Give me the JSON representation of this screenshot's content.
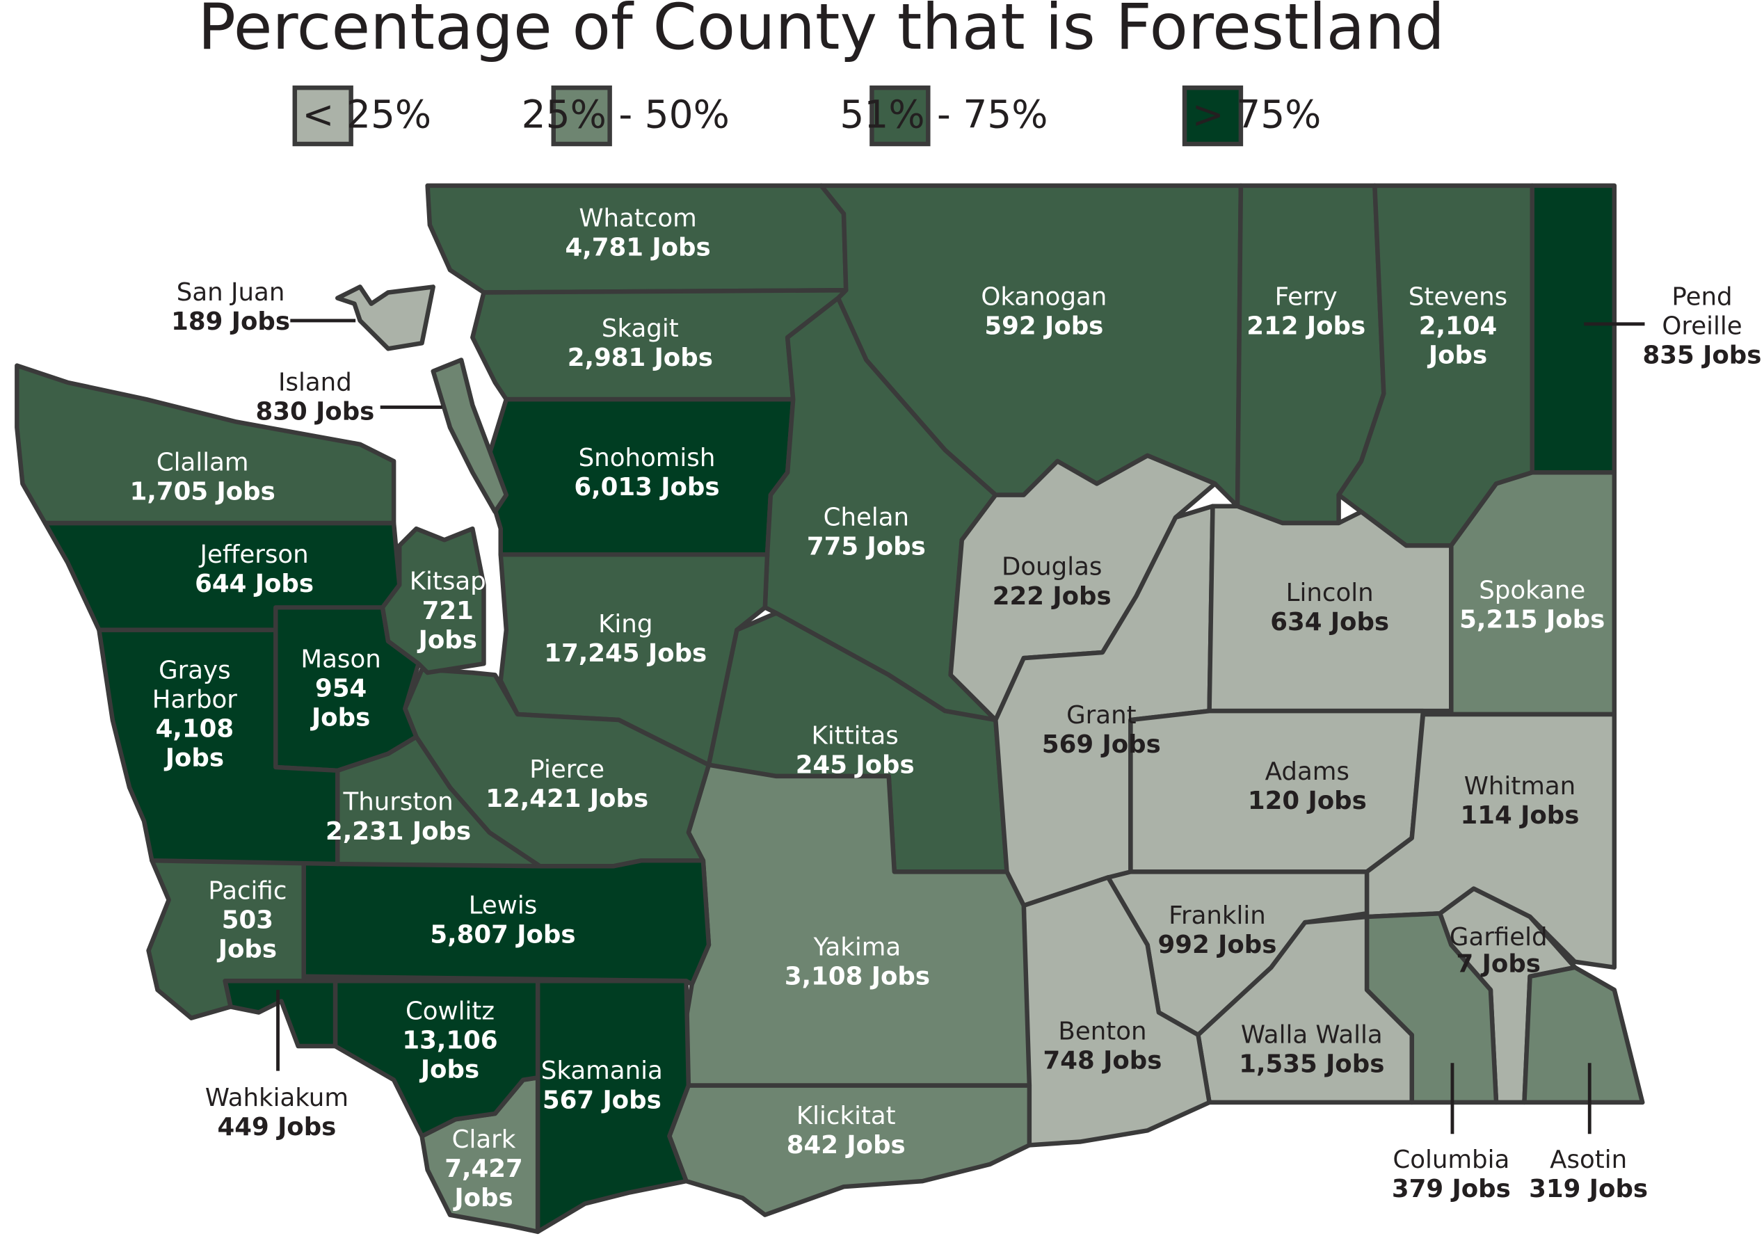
{
  "title": "Percentage of  County that is Forestland",
  "legend": [
    {
      "label": "< 25%",
      "color": "#abb2a8"
    },
    {
      "label": "25% - 50%",
      "color": "#6e8571"
    },
    {
      "label": "51% - 75%",
      "color": "#3d5f47"
    },
    {
      "label": "> 75%",
      "color": "#003d22"
    }
  ],
  "counties": [
    {
      "name": [
        "Whatcom"
      ],
      "jobs": [
        "4,781 Jobs"
      ],
      "class": 2
    },
    {
      "name": [
        "Okanogan"
      ],
      "jobs": [
        "592 Jobs"
      ],
      "class": 2
    },
    {
      "name": [
        "Ferry"
      ],
      "jobs": [
        "212 Jobs"
      ],
      "class": 2
    },
    {
      "name": [
        "Stevens"
      ],
      "jobs": [
        "2,104",
        "Jobs"
      ],
      "class": 2
    },
    {
      "name": [
        "Pend",
        "Oreille"
      ],
      "jobs": [
        "835 Jobs"
      ],
      "class": 3
    },
    {
      "name": [
        "Skagit"
      ],
      "jobs": [
        "2,981 Jobs"
      ],
      "class": 2
    },
    {
      "name": [
        "Snohomish"
      ],
      "jobs": [
        "6,013 Jobs"
      ],
      "class": 3
    },
    {
      "name": [
        "Chelan"
      ],
      "jobs": [
        "775 Jobs"
      ],
      "class": 2
    },
    {
      "name": [
        "Douglas"
      ],
      "jobs": [
        "222 Jobs"
      ],
      "class": 0
    },
    {
      "name": [
        "King"
      ],
      "jobs": [
        "17,245 Jobs"
      ],
      "class": 2
    },
    {
      "name": [
        "Kittitas"
      ],
      "jobs": [
        "245 Jobs"
      ],
      "class": 2
    },
    {
      "name": [
        "Grant"
      ],
      "jobs": [
        "569 Jobs"
      ],
      "class": 0
    },
    {
      "name": [
        "Lincoln"
      ],
      "jobs": [
        "634 Jobs"
      ],
      "class": 0
    },
    {
      "name": [
        "Spokane"
      ],
      "jobs": [
        "5,215 Jobs"
      ],
      "class": 1
    },
    {
      "name": [
        "Adams"
      ],
      "jobs": [
        "120 Jobs"
      ],
      "class": 0
    },
    {
      "name": [
        "Whitman"
      ],
      "jobs": [
        "114 Jobs"
      ],
      "class": 0
    },
    {
      "name": [
        "Franklin"
      ],
      "jobs": [
        "992 Jobs"
      ],
      "class": 0
    },
    {
      "name": [
        "Garfield"
      ],
      "jobs": [
        "7 Jobs"
      ],
      "class": 0
    },
    {
      "name": [
        "Asotin"
      ],
      "jobs": [
        "319 Jobs"
      ],
      "class": 1
    },
    {
      "name": [
        "Columbia"
      ],
      "jobs": [
        "379 Jobs"
      ],
      "class": 1
    },
    {
      "name": [
        "Walla Walla"
      ],
      "jobs": [
        "1,535 Jobs"
      ],
      "class": 0
    },
    {
      "name": [
        "Benton"
      ],
      "jobs": [
        "748 Jobs"
      ],
      "class": 0
    },
    {
      "name": [
        "Yakima"
      ],
      "jobs": [
        "3,108 Jobs"
      ],
      "class": 1
    },
    {
      "name": [
        "Klickitat"
      ],
      "jobs": [
        "842 Jobs"
      ],
      "class": 1
    },
    {
      "name": [
        "Skamania"
      ],
      "jobs": [
        "567 Jobs"
      ],
      "class": 3
    },
    {
      "name": [
        "Clark"
      ],
      "jobs": [
        "7,427",
        "Jobs"
      ],
      "class": 1
    },
    {
      "name": [
        "Cowlitz"
      ],
      "jobs": [
        "13,106",
        "Jobs"
      ],
      "class": 3
    },
    {
      "name": [
        "Wahkiakum"
      ],
      "jobs": [
        "449 Jobs"
      ],
      "class": 3
    },
    {
      "name": [
        "Pacific"
      ],
      "jobs": [
        "503",
        "Jobs"
      ],
      "class": 2
    },
    {
      "name": [
        "Lewis"
      ],
      "jobs": [
        "5,807 Jobs"
      ],
      "class": 3
    },
    {
      "name": [
        "Thurston"
      ],
      "jobs": [
        "2,231 Jobs"
      ],
      "class": 2
    },
    {
      "name": [
        "Pierce"
      ],
      "jobs": [
        "12,421 Jobs"
      ],
      "class": 2
    },
    {
      "name": [
        "Mason"
      ],
      "jobs": [
        "954",
        "Jobs"
      ],
      "class": 3
    },
    {
      "name": [
        "Grays",
        "Harbor"
      ],
      "jobs": [
        "4,108",
        "Jobs"
      ],
      "class": 3
    },
    {
      "name": [
        "Jefferson"
      ],
      "jobs": [
        "644 Jobs"
      ],
      "class": 3
    },
    {
      "name": [
        "Clallam"
      ],
      "jobs": [
        "1,705 Jobs"
      ],
      "class": 2
    },
    {
      "name": [
        "Kitsap"
      ],
      "jobs": [
        "721",
        "Jobs"
      ],
      "class": 2
    },
    {
      "name": [
        "Island"
      ],
      "jobs": [
        "830 Jobs"
      ],
      "class": 1
    },
    {
      "name": [
        "San Juan"
      ],
      "jobs": [
        "189 Jobs"
      ],
      "class": 0
    }
  ]
}
